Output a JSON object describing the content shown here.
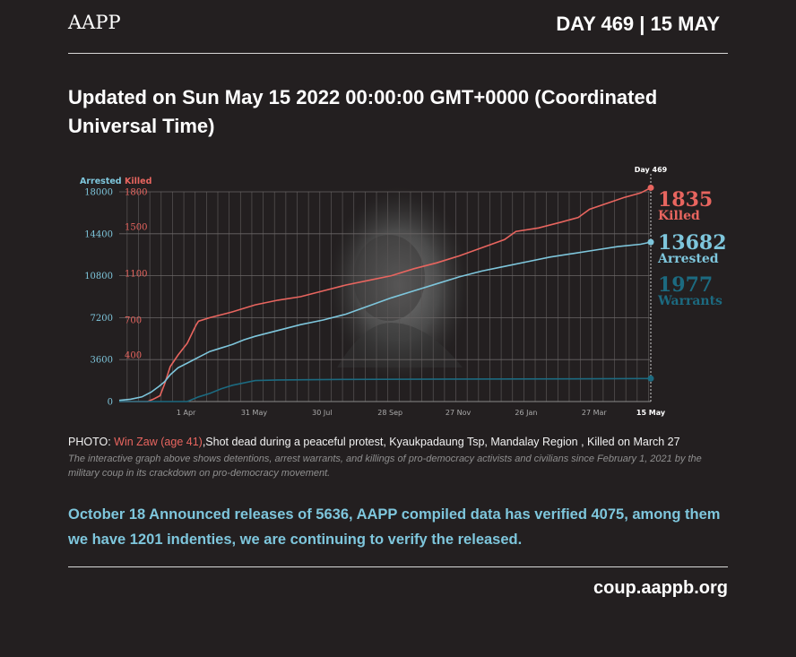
{
  "header": {
    "brand": "AAPP",
    "day_label": "DAY 469 | 15 MAY"
  },
  "updated_text": "Updated on Sun May 15 2022 00:00:00 GMT+0000 (Coordinated Universal Time)",
  "chart_data": {
    "type": "line",
    "marker_label": "Day 469",
    "x_tick_labels": [
      "1 Apr",
      "31 May",
      "30 Jul",
      "28 Sep",
      "27 Nov",
      "26 Jan",
      "27 Mar",
      "15 May"
    ],
    "x_ticks_day": [
      59,
      119,
      179,
      239,
      299,
      359,
      419,
      469
    ],
    "xlim": [
      0,
      469
    ],
    "left_axis": {
      "label": "Arrested",
      "ticks": [
        0,
        3600,
        7200,
        10800,
        14400,
        18000
      ],
      "ylim": [
        0,
        18000
      ],
      "color": "#7ec6dc"
    },
    "right_axis": {
      "label": "Killed",
      "ticks": [
        400,
        700,
        1100,
        1500,
        1800
      ],
      "ylim": [
        0,
        1800
      ],
      "color": "#e8655f"
    },
    "series": [
      {
        "name": "Killed",
        "axis": "right",
        "color": "#e8655f",
        "final": "1835",
        "points": [
          [
            0,
            0
          ],
          [
            25,
            0
          ],
          [
            30,
            20
          ],
          [
            36,
            50
          ],
          [
            40,
            150
          ],
          [
            45,
            300
          ],
          [
            52,
            400
          ],
          [
            60,
            500
          ],
          [
            66,
            620
          ],
          [
            68,
            660
          ],
          [
            70,
            690
          ],
          [
            80,
            720
          ],
          [
            100,
            770
          ],
          [
            120,
            830
          ],
          [
            140,
            870
          ],
          [
            160,
            900
          ],
          [
            180,
            950
          ],
          [
            200,
            1000
          ],
          [
            220,
            1040
          ],
          [
            240,
            1080
          ],
          [
            260,
            1140
          ],
          [
            280,
            1190
          ],
          [
            300,
            1250
          ],
          [
            320,
            1320
          ],
          [
            340,
            1390
          ],
          [
            350,
            1460
          ],
          [
            370,
            1490
          ],
          [
            390,
            1540
          ],
          [
            405,
            1580
          ],
          [
            415,
            1650
          ],
          [
            430,
            1700
          ],
          [
            445,
            1750
          ],
          [
            460,
            1790
          ],
          [
            469,
            1835
          ]
        ]
      },
      {
        "name": "Arrested",
        "axis": "left",
        "color": "#7ec6dc",
        "final": "13682",
        "points": [
          [
            0,
            100
          ],
          [
            10,
            200
          ],
          [
            20,
            400
          ],
          [
            28,
            800
          ],
          [
            35,
            1300
          ],
          [
            40,
            1700
          ],
          [
            45,
            2300
          ],
          [
            52,
            2900
          ],
          [
            60,
            3300
          ],
          [
            70,
            3800
          ],
          [
            80,
            4300
          ],
          [
            90,
            4600
          ],
          [
            100,
            4900
          ],
          [
            110,
            5300
          ],
          [
            120,
            5600
          ],
          [
            140,
            6100
          ],
          [
            160,
            6600
          ],
          [
            180,
            7000
          ],
          [
            200,
            7500
          ],
          [
            220,
            8200
          ],
          [
            240,
            8900
          ],
          [
            260,
            9500
          ],
          [
            280,
            10100
          ],
          [
            300,
            10700
          ],
          [
            320,
            11200
          ],
          [
            340,
            11600
          ],
          [
            360,
            12000
          ],
          [
            380,
            12400
          ],
          [
            400,
            12700
          ],
          [
            420,
            13000
          ],
          [
            440,
            13300
          ],
          [
            460,
            13500
          ],
          [
            469,
            13682
          ]
        ]
      },
      {
        "name": "Warrants",
        "axis": "left",
        "color": "#1c6a80",
        "final": "1977",
        "points": [
          [
            0,
            0
          ],
          [
            60,
            0
          ],
          [
            70,
            400
          ],
          [
            80,
            700
          ],
          [
            90,
            1100
          ],
          [
            100,
            1400
          ],
          [
            110,
            1600
          ],
          [
            120,
            1800
          ],
          [
            140,
            1850
          ],
          [
            200,
            1900
          ],
          [
            300,
            1930
          ],
          [
            400,
            1950
          ],
          [
            469,
            1977
          ]
        ]
      }
    ]
  },
  "photo": {
    "prefix": "PHOTO: ",
    "name": "Win Zaw (age 41)",
    "description": ",Shot dead during a peaceful protest, Kyaukpadaung Tsp, Mandalay Region , Killed on March 27"
  },
  "caption": "The interactive graph above shows detentions, arrest warrants, and killings of pro-democracy activists and civilians since February 1, 2021 by the military coup in its crackdown on pro-democracy movement.",
  "release_text": "October 18 Announced releases of 5636, AAPP compiled data has verified 4075, among them we have 1201 indenties, we are continuing to verify the released.",
  "footer": {
    "url": "coup.aappb.org"
  }
}
